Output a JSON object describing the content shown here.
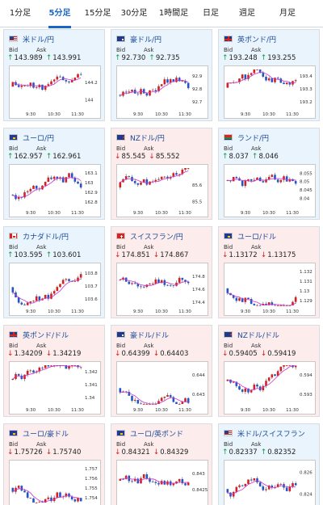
{
  "tabs": [
    "1分足",
    "5分足",
    "15分足",
    "30分足",
    "1時間足",
    "日足",
    "週足",
    "月足"
  ],
  "active_tab": "5分足",
  "colors": {
    "up_bg": "#e9f4fd",
    "down_bg": "#fdecec",
    "accent": "#1a66c6",
    "candle_up": "#d42020",
    "candle_down": "#2255c8",
    "ma_line": "#cc33cc"
  },
  "bid_label": "Bid",
  "ask_label": "Ask",
  "cards": [
    {
      "title": "米ドル/円",
      "flag": "flag-us",
      "dir": "up",
      "bid": "143.989",
      "ask": "143.991",
      "chart_data": {
        "type": "candlestick",
        "x_ticks": [
          "9:30",
          "10:30",
          "11:30"
        ],
        "y_ticks": [
          "144.2",
          "144"
        ],
        "ylim": [
          143.9,
          144.35
        ]
      }
    },
    {
      "title": "豪ドル/円",
      "flag": "flag-au",
      "dir": "up",
      "bid": "92.730",
      "ask": "92.735",
      "chart_data": {
        "type": "candlestick",
        "x_ticks": [
          "9:30",
          "10:30",
          "11:30"
        ],
        "y_ticks": [
          "92.9",
          "92.8",
          "92.7"
        ],
        "ylim": [
          92.65,
          92.95
        ]
      }
    },
    {
      "title": "英ポンド/円",
      "flag": "flag-gb",
      "dir": "up",
      "bid": "193.248",
      "ask": "193.255",
      "chart_data": {
        "type": "candlestick",
        "x_ticks": [
          "9:30",
          "10:30",
          "11:30"
        ],
        "y_ticks": [
          "193.4",
          "193.3",
          "193.2"
        ],
        "ylim": [
          193.15,
          193.45
        ]
      }
    },
    {
      "title": "ユーロ/円",
      "flag": "flag-eu",
      "dir": "up",
      "bid": "162.957",
      "ask": "162.961",
      "chart_data": {
        "type": "candlestick",
        "x_ticks": [
          "9:30",
          "10:30",
          "11:30"
        ],
        "y_ticks": [
          "163.1",
          "163",
          "162.9",
          "162.8"
        ],
        "ylim": [
          162.75,
          163.15
        ]
      }
    },
    {
      "title": "NZドル/円",
      "flag": "flag-nz",
      "dir": "down",
      "bid": "85.545",
      "ask": "85.552",
      "chart_data": {
        "type": "candlestick",
        "x_ticks": [
          "9:30",
          "10:30",
          "11:30"
        ],
        "y_ticks": [
          "85.6",
          "85.5"
        ],
        "ylim": [
          85.47,
          85.7
        ]
      }
    },
    {
      "title": "ランド/円",
      "flag": "flag-za",
      "dir": "up",
      "bid": "8.037",
      "ask": "8.046",
      "chart_data": {
        "type": "candlestick",
        "x_ticks": [
          "9:30",
          "10:30",
          "11:30"
        ],
        "y_ticks": [
          "8.055",
          "8.05",
          "8.045",
          "8.04"
        ],
        "ylim": [
          8.035,
          8.058
        ]
      }
    },
    {
      "title": "カナダドル/円",
      "flag": "flag-ca",
      "dir": "up",
      "bid": "103.595",
      "ask": "103.601",
      "chart_data": {
        "type": "candlestick",
        "x_ticks": [
          "9:30",
          "10:30",
          "11:30"
        ],
        "y_ticks": [
          "103.8",
          "103.7",
          "103.6"
        ],
        "ylim": [
          103.55,
          103.85
        ]
      }
    },
    {
      "title": "スイスフラン/円",
      "flag": "flag-ch",
      "dir": "down",
      "bid": "174.851",
      "ask": "174.867",
      "chart_data": {
        "type": "candlestick",
        "x_ticks": [
          "9:30",
          "10:30",
          "11:30"
        ],
        "y_ticks": [
          "174.8",
          "174.6",
          "174.4"
        ],
        "ylim": [
          174.35,
          174.95
        ]
      }
    },
    {
      "title": "ユーロ/ドル",
      "flag": "flag-eu-us",
      "dir": "down",
      "bid": "1.13172",
      "ask": "1.13175",
      "chart_data": {
        "type": "candlestick",
        "x_ticks": [
          "9:30",
          "10:30",
          "11:30"
        ],
        "y_ticks": [
          "1.132",
          "1.131",
          "1.13",
          "1.129"
        ],
        "ylim": [
          1.1285,
          1.1325
        ]
      }
    },
    {
      "title": "英ポンド/ドル",
      "flag": "flag-gb-us",
      "dir": "down",
      "bid": "1.34209",
      "ask": "1.34219",
      "chart_data": {
        "type": "candlestick",
        "x_ticks": [
          "9:30",
          "10:30",
          "11:30"
        ],
        "y_ticks": [
          "1.342",
          "1.341",
          "1.34"
        ],
        "ylim": [
          1.3395,
          1.3425
        ]
      }
    },
    {
      "title": "豪ドル/ドル",
      "flag": "flag-au-us",
      "dir": "down",
      "bid": "0.64399",
      "ask": "0.64403",
      "chart_data": {
        "type": "candlestick",
        "x_ticks": [
          "9:30",
          "10:30",
          "11:30"
        ],
        "y_ticks": [
          "0.644",
          "0.643"
        ],
        "ylim": [
          0.6425,
          0.6445
        ]
      }
    },
    {
      "title": "NZドル/ドル",
      "flag": "flag-nz-us",
      "dir": "down",
      "bid": "0.59405",
      "ask": "0.59419",
      "chart_data": {
        "type": "candlestick",
        "x_ticks": [
          "9:30",
          "10:30",
          "11:30"
        ],
        "y_ticks": [
          "0.594",
          "0.593"
        ],
        "ylim": [
          0.5925,
          0.5945
        ]
      }
    },
    {
      "title": "ユーロ/豪ドル",
      "flag": "flag-eu-au",
      "dir": "down",
      "bid": "1.75726",
      "ask": "1.75740",
      "chart_data": {
        "type": "candlestick",
        "x_ticks": [
          "9:30",
          "10:30",
          "11:30"
        ],
        "y_ticks": [
          "1.757",
          "1.756",
          "1.755",
          "1.754"
        ],
        "ylim": [
          1.7535,
          1.7575
        ]
      }
    },
    {
      "title": "ユーロ/英ポンド",
      "flag": "flag-eu-gb",
      "dir": "down",
      "bid": "0.84321",
      "ask": "0.84329",
      "chart_data": {
        "type": "candlestick",
        "x_ticks": [
          "9:30",
          "10:30",
          "11:30"
        ],
        "y_ticks": [
          "0.843",
          "0.8425"
        ],
        "ylim": [
          0.8421,
          0.8433
        ]
      }
    },
    {
      "title": "米ドル/スイスフラン",
      "flag": "flag-us-ch",
      "dir": "up",
      "bid": "0.82337",
      "ask": "0.82352",
      "chart_data": {
        "type": "candlestick",
        "x_ticks": [
          "9:30",
          "10:30",
          "11:30"
        ],
        "y_ticks": [
          "0.826",
          "0.824"
        ],
        "ylim": [
          0.8232,
          0.8268
        ]
      }
    }
  ]
}
